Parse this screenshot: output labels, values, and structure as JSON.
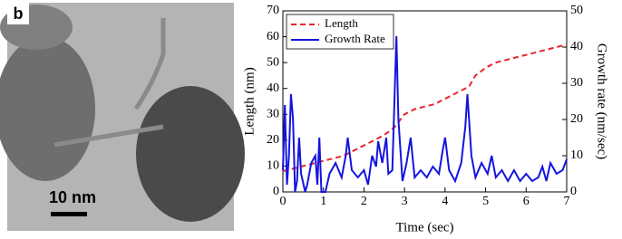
{
  "image": {
    "panel_label": "b",
    "scale_bar": "10 nm"
  },
  "chart_data": {
    "type": "line",
    "xlabel": "Time (sec)",
    "ylabel": "Length (nm)",
    "y2label": "Growth rate (nm/sec)",
    "xlim": [
      0,
      7
    ],
    "xticks": [
      0,
      1,
      2,
      3,
      4,
      5,
      6,
      7
    ],
    "ylim": [
      0,
      70
    ],
    "yticks": [
      0,
      10,
      20,
      30,
      40,
      50,
      60,
      70
    ],
    "y2lim": [
      0,
      50
    ],
    "y2ticks": [
      0,
      10,
      20,
      30,
      40,
      50
    ],
    "legend": "upper left",
    "series": [
      {
        "name": "Length",
        "color": "#e8262b",
        "style": "dashed",
        "x": [
          0,
          0.25,
          0.5,
          0.75,
          1,
          1.25,
          1.5,
          1.75,
          2,
          2.25,
          2.5,
          2.75,
          3,
          3.25,
          3.5,
          3.75,
          4,
          4.25,
          4.5,
          4.6,
          4.75,
          5,
          5.25,
          5.5,
          5.75,
          6,
          6.25,
          6.5,
          6.75,
          7
        ],
        "values": [
          8,
          9,
          10,
          11,
          12,
          13,
          14,
          16,
          18,
          20,
          22,
          25,
          30,
          32,
          33,
          34,
          36,
          38,
          40,
          41,
          45,
          48,
          50,
          51,
          52,
          53,
          54,
          55,
          56,
          57
        ]
      },
      {
        "name": "Growth Rate",
        "color": "#1414e0",
        "style": "solid",
        "axis": "y2",
        "x": [
          0,
          0.05,
          0.1,
          0.15,
          0.2,
          0.25,
          0.3,
          0.35,
          0.4,
          0.45,
          0.55,
          0.6,
          0.7,
          0.8,
          0.85,
          0.9,
          0.95,
          1.05,
          1.15,
          1.3,
          1.45,
          1.55,
          1.6,
          1.7,
          1.85,
          2.0,
          2.1,
          2.2,
          2.3,
          2.35,
          2.45,
          2.55,
          2.6,
          2.7,
          2.8,
          2.85,
          2.95,
          3.05,
          3.15,
          3.25,
          3.4,
          3.55,
          3.7,
          3.85,
          3.95,
          4.0,
          4.1,
          4.25,
          4.4,
          4.5,
          4.55,
          4.65,
          4.75,
          4.9,
          5.05,
          5.15,
          5.25,
          5.4,
          5.55,
          5.7,
          5.85,
          6.0,
          6.15,
          6.3,
          6.4,
          6.5,
          6.6,
          6.75,
          6.9,
          7.0
        ],
        "values": [
          6,
          24,
          2,
          10,
          27,
          20,
          0,
          3,
          15,
          5,
          0,
          2,
          8,
          10,
          2,
          15,
          0,
          0,
          5,
          8,
          4,
          10,
          15,
          6,
          4,
          6,
          2,
          10,
          7,
          14,
          8,
          15,
          5,
          6,
          43,
          20,
          3,
          8,
          15,
          4,
          6,
          4,
          7,
          5,
          12,
          15,
          6,
          3,
          8,
          18,
          27,
          10,
          4,
          8,
          5,
          10,
          4,
          6,
          3,
          6,
          3,
          5,
          3,
          4,
          7,
          3,
          8,
          5,
          6,
          9
        ]
      }
    ]
  }
}
